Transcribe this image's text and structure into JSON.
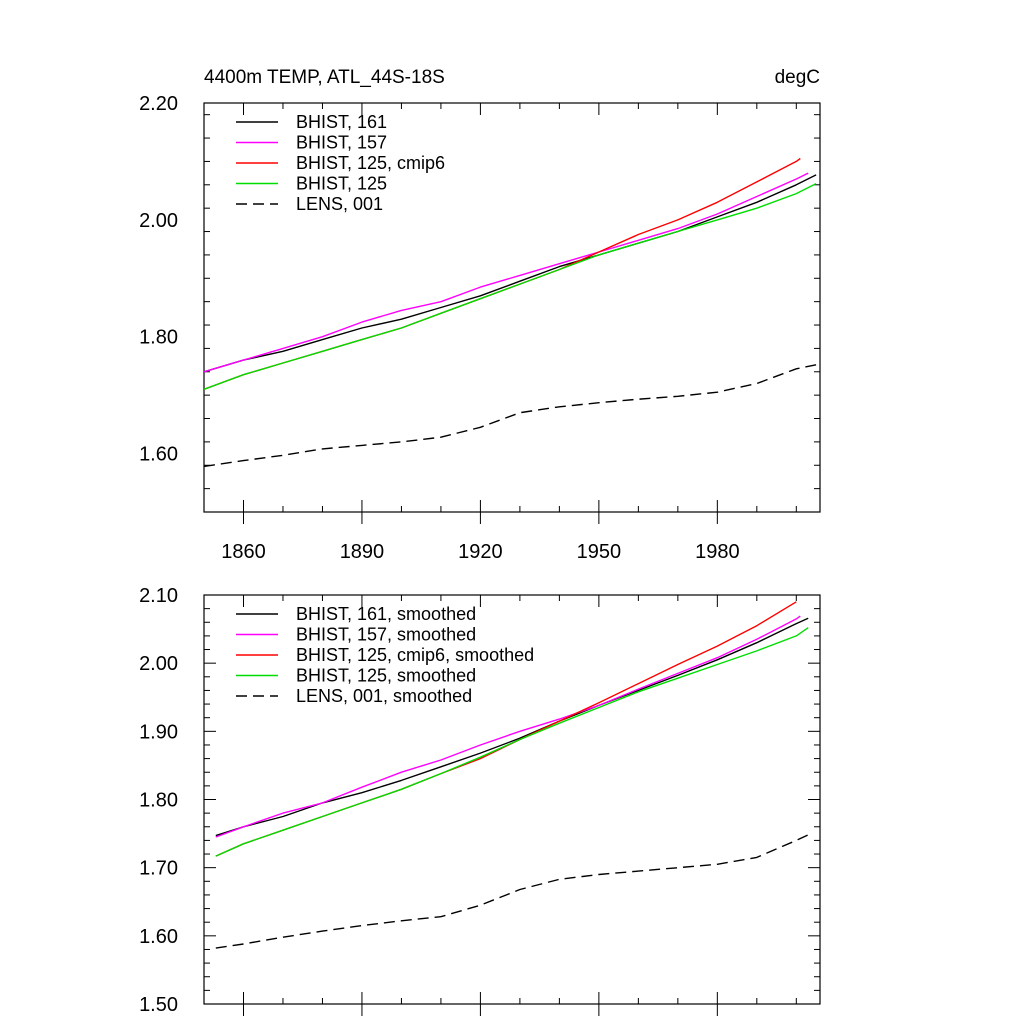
{
  "chart_data": [
    {
      "type": "line",
      "title_left": "4400m TEMP, ATL_44S-18S",
      "title_right": "degC",
      "xlim": [
        1850,
        2006
      ],
      "ylim": [
        1.5,
        2.2
      ],
      "xticks": [
        1860,
        1890,
        1920,
        1950,
        1980
      ],
      "xtick_labels": [
        "1860",
        "1890",
        "1920",
        "1950",
        "1980"
      ],
      "yticks": [
        1.6,
        1.8,
        2.0,
        2.2
      ],
      "ytick_labels": [
        "1.60",
        "1.80",
        "2.00",
        "2.20"
      ],
      "yminor_step": 0.04,
      "xminor_step": 10,
      "show_xtick_labels": true,
      "legend": "top-left",
      "series": [
        {
          "name": "BHIST, 161",
          "color": "#000000",
          "dash": "solid",
          "x": [
            1850,
            1860,
            1870,
            1880,
            1890,
            1900,
            1910,
            1920,
            1930,
            1940,
            1950,
            1960,
            1970,
            1980,
            1990,
            2000,
            2005
          ],
          "y": [
            1.74,
            1.76,
            1.775,
            1.795,
            1.815,
            1.83,
            1.85,
            1.87,
            1.895,
            1.92,
            1.94,
            1.96,
            1.98,
            2.005,
            2.03,
            2.06,
            2.077
          ]
        },
        {
          "name": "BHIST, 157",
          "color": "#ff00ff",
          "dash": "solid",
          "x": [
            1850,
            1860,
            1870,
            1880,
            1890,
            1900,
            1910,
            1920,
            1930,
            1940,
            1950,
            1960,
            1970,
            1980,
            1990,
            2000,
            2003
          ],
          "y": [
            1.74,
            1.76,
            1.78,
            1.8,
            1.825,
            1.845,
            1.86,
            1.885,
            1.905,
            1.925,
            1.945,
            1.965,
            1.985,
            2.01,
            2.04,
            2.07,
            2.08
          ]
        },
        {
          "name": "BHIST, 125, cmip6",
          "color": "#ff0000",
          "dash": "solid",
          "x": [
            1850,
            1860,
            1870,
            1880,
            1890,
            1900,
            1910,
            1920,
            1930,
            1940,
            1950,
            1960,
            1970,
            1980,
            1990,
            2000,
            2001
          ],
          "y": [
            1.71,
            1.735,
            1.755,
            1.775,
            1.795,
            1.815,
            1.84,
            1.865,
            1.89,
            1.915,
            1.945,
            1.975,
            2.0,
            2.03,
            2.065,
            2.1,
            2.105
          ]
        },
        {
          "name": "BHIST, 125",
          "color": "#00dd00",
          "dash": "solid",
          "x": [
            1850,
            1860,
            1870,
            1880,
            1890,
            1900,
            1910,
            1920,
            1930,
            1940,
            1950,
            1960,
            1970,
            1980,
            1990,
            2000,
            2005
          ],
          "y": [
            1.71,
            1.735,
            1.755,
            1.775,
            1.795,
            1.815,
            1.84,
            1.865,
            1.89,
            1.915,
            1.94,
            1.96,
            1.98,
            2.0,
            2.02,
            2.045,
            2.062
          ]
        },
        {
          "name": "LENS, 001",
          "color": "#000000",
          "dash": "dashed",
          "x": [
            1850,
            1860,
            1870,
            1880,
            1890,
            1900,
            1910,
            1920,
            1930,
            1940,
            1950,
            1960,
            1970,
            1980,
            1990,
            2000,
            2005
          ],
          "y": [
            1.578,
            1.588,
            1.597,
            1.608,
            1.614,
            1.62,
            1.628,
            1.645,
            1.67,
            1.68,
            1.687,
            1.693,
            1.698,
            1.705,
            1.72,
            1.745,
            1.752
          ]
        }
      ]
    },
    {
      "type": "line",
      "xlim": [
        1850,
        2006
      ],
      "ylim": [
        1.5,
        2.1
      ],
      "xticks": [
        1860,
        1890,
        1920,
        1950,
        1980
      ],
      "xtick_labels": [],
      "yticks": [
        1.5,
        1.6,
        1.7,
        1.8,
        1.9,
        2.0,
        2.1
      ],
      "ytick_labels": [
        "1.50",
        "1.60",
        "1.70",
        "1.80",
        "1.90",
        "2.00",
        "2.10"
      ],
      "yminor_step": 0.02,
      "xminor_step": 10,
      "show_xtick_labels": false,
      "legend": "top-left",
      "series": [
        {
          "name": "BHIST, 161, smoothed",
          "color": "#000000",
          "dash": "solid",
          "x": [
            1853,
            1860,
            1870,
            1880,
            1890,
            1900,
            1910,
            1920,
            1930,
            1940,
            1950,
            1960,
            1970,
            1980,
            1990,
            2000,
            2003
          ],
          "y": [
            1.747,
            1.76,
            1.775,
            1.795,
            1.81,
            1.828,
            1.848,
            1.868,
            1.89,
            1.915,
            1.938,
            1.96,
            1.982,
            2.005,
            2.03,
            2.058,
            2.066
          ]
        },
        {
          "name": "BHIST, 157, smoothed",
          "color": "#ff00ff",
          "dash": "solid",
          "x": [
            1853,
            1860,
            1870,
            1880,
            1890,
            1900,
            1910,
            1920,
            1930,
            1940,
            1950,
            1960,
            1970,
            1980,
            1990,
            2000,
            2001
          ],
          "y": [
            1.745,
            1.76,
            1.78,
            1.795,
            1.818,
            1.84,
            1.858,
            1.88,
            1.9,
            1.918,
            1.938,
            1.962,
            1.985,
            2.008,
            2.035,
            2.065,
            2.069
          ]
        },
        {
          "name": "BHIST, 125, cmip6, smoothed",
          "color": "#ff0000",
          "dash": "solid",
          "x": [
            1853,
            1860,
            1870,
            1880,
            1890,
            1900,
            1910,
            1920,
            1930,
            1940,
            1950,
            1960,
            1970,
            1980,
            1990,
            2000
          ],
          "y": [
            1.717,
            1.735,
            1.755,
            1.775,
            1.795,
            1.815,
            1.838,
            1.86,
            1.888,
            1.915,
            1.942,
            1.97,
            1.998,
            2.025,
            2.055,
            2.09
          ]
        },
        {
          "name": "BHIST, 125, smoothed",
          "color": "#00dd00",
          "dash": "solid",
          "x": [
            1853,
            1860,
            1870,
            1880,
            1890,
            1900,
            1910,
            1920,
            1930,
            1940,
            1950,
            1960,
            1970,
            1980,
            1990,
            2000,
            2003
          ],
          "y": [
            1.717,
            1.735,
            1.755,
            1.775,
            1.795,
            1.815,
            1.838,
            1.862,
            1.888,
            1.912,
            1.935,
            1.958,
            1.978,
            1.998,
            2.018,
            2.04,
            2.052
          ]
        },
        {
          "name": "LENS, 001, smoothed",
          "color": "#000000",
          "dash": "dashed",
          "x": [
            1853,
            1860,
            1870,
            1880,
            1890,
            1900,
            1910,
            1920,
            1930,
            1940,
            1950,
            1960,
            1970,
            1980,
            1990,
            2000,
            2003
          ],
          "y": [
            1.582,
            1.588,
            1.598,
            1.607,
            1.615,
            1.622,
            1.628,
            1.645,
            1.668,
            1.683,
            1.69,
            1.695,
            1.7,
            1.705,
            1.715,
            1.74,
            1.748
          ]
        }
      ]
    }
  ]
}
